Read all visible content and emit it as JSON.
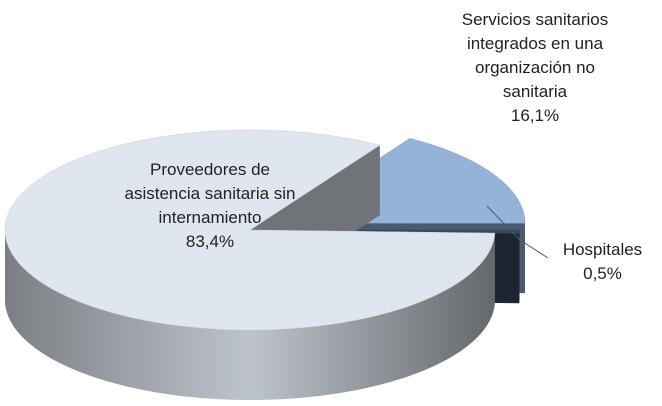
{
  "chart_data": {
    "type": "pie3d",
    "categories": [
      "Servicios sanitarios integrados en una organización no sanitaria",
      "Hospitales",
      "Proveedores de asistencia sanitaria sin internamiento"
    ],
    "values": [
      16.1,
      0.5,
      83.4
    ],
    "value_labels": [
      "16,1%",
      "0,5%",
      "83,4%"
    ],
    "colors": [
      "#95b3d7",
      "#3a4a60",
      "#dfe6f0"
    ]
  }
}
